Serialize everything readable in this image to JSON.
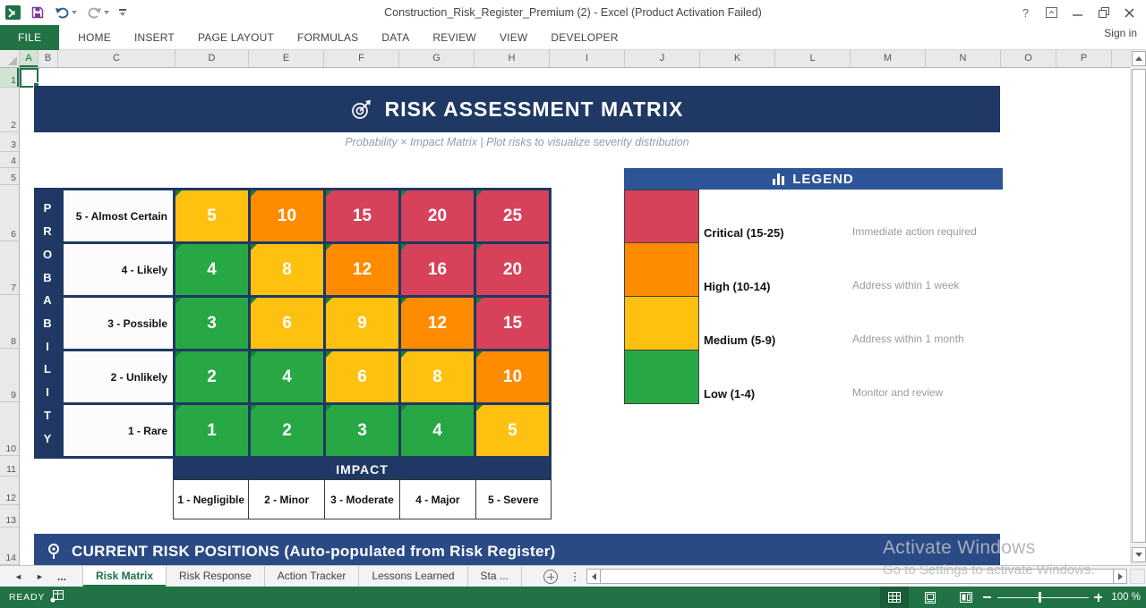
{
  "window": {
    "title": "Construction_Risk_Register_Premium (2) - Excel (Product Activation Failed)",
    "sign_in": "Sign in",
    "help_glyph": "?"
  },
  "ribbon": {
    "tabs": [
      "FILE",
      "HOME",
      "INSERT",
      "PAGE LAYOUT",
      "FORMULAS",
      "DATA",
      "REVIEW",
      "VIEW",
      "DEVELOPER"
    ],
    "active": "FILE"
  },
  "grid": {
    "columns": [
      "A",
      "B",
      "C",
      "D",
      "E",
      "F",
      "G",
      "H",
      "I",
      "J",
      "K",
      "L",
      "M",
      "N",
      "O",
      "P"
    ],
    "rows": [
      "1",
      "2",
      "3",
      "4",
      "5",
      "6",
      "7",
      "8",
      "9",
      "10",
      "11",
      "12",
      "13",
      "14"
    ],
    "selected_cell": "A1"
  },
  "sheet": {
    "title_banner": {
      "title": "RISK ASSESSMENT MATRIX"
    },
    "subtitle": "Probability × Impact Matrix | Plot risks to visualize severity distribution",
    "matrix": {
      "y_axis": "PROBABILITY",
      "x_axis": "IMPACT",
      "rows": [
        {
          "label": "5 - Almost Certain",
          "values": [
            5,
            10,
            15,
            20,
            25
          ],
          "colors": [
            "yellow",
            "orange",
            "red",
            "red",
            "red"
          ]
        },
        {
          "label": "4 - Likely",
          "values": [
            4,
            8,
            12,
            16,
            20
          ],
          "colors": [
            "green",
            "yellow",
            "orange",
            "red",
            "red"
          ]
        },
        {
          "label": "3 - Possible",
          "values": [
            3,
            6,
            9,
            12,
            15
          ],
          "colors": [
            "green",
            "yellow",
            "yellow",
            "orange",
            "red"
          ]
        },
        {
          "label": "2 - Unlikely",
          "values": [
            2,
            4,
            6,
            8,
            10
          ],
          "colors": [
            "green",
            "green",
            "yellow",
            "yellow",
            "orange"
          ]
        },
        {
          "label": "1 - Rare",
          "values": [
            1,
            2,
            3,
            4,
            5
          ],
          "colors": [
            "green",
            "green",
            "green",
            "green",
            "yellow"
          ]
        }
      ],
      "impact_labels": [
        "1 - Negligible",
        "2 - Minor",
        "3 - Moderate",
        "4 - Major",
        "5 - Severe"
      ]
    },
    "legend": {
      "title": "LEGEND",
      "entries": [
        {
          "severity": "Critical (15-25)",
          "action": "Immediate action required",
          "color": "red"
        },
        {
          "severity": "High (10-14)",
          "action": "Address within 1 week",
          "color": "orange"
        },
        {
          "severity": "Medium (5-9)",
          "action": "Address within 1 month",
          "color": "yellow"
        },
        {
          "severity": "Low (1-4)",
          "action": "Monitor and review",
          "color": "green"
        }
      ]
    },
    "section_banner": "CURRENT RISK POSITIONS (Auto-populated from Risk Register)"
  },
  "colors": {
    "navy": "#1F3864",
    "legend_header_blue": "#2E5597",
    "excel_green": "#217346",
    "red": "#D8415A",
    "orange": "#FF8C00",
    "yellow": "#FFC110",
    "green": "#27A844"
  },
  "sheet_tabs": {
    "nav_prev": "◄",
    "nav_next": "►",
    "overflow": "...",
    "tabs": [
      "Risk Matrix",
      "Risk Response",
      "Action Tracker",
      "Lessons Learned",
      "Sta ..."
    ],
    "active": "Risk Matrix"
  },
  "status_bar": {
    "mode": "READY",
    "zoom_level": "100 %"
  },
  "watermark": {
    "line1": "Activate Windows",
    "line2": "Go to Settings to activate Windows."
  }
}
